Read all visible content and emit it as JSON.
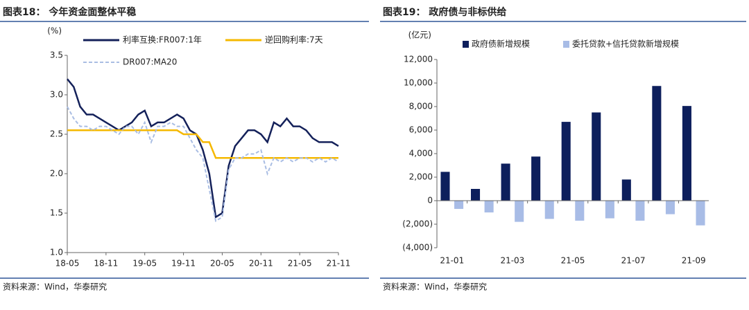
{
  "chart_data": [
    {
      "type": "line",
      "title": "图表18： 今年资金面整体平稳",
      "source": "资料来源：Wind，华泰研究",
      "y_label": "(%)",
      "x": [
        "18-05",
        null,
        null,
        null,
        null,
        null,
        "18-11",
        null,
        null,
        null,
        null,
        null,
        "19-05",
        null,
        null,
        null,
        null,
        null,
        "19-11",
        null,
        null,
        null,
        null,
        null,
        "20-05",
        null,
        null,
        null,
        null,
        null,
        "20-11",
        null,
        null,
        null,
        null,
        null,
        "21-05",
        null,
        null,
        null,
        null,
        null,
        "21-11"
      ],
      "ylim": [
        1.0,
        3.5
      ],
      "yticks": [
        {
          "value": 1.0,
          "label": "1.0"
        },
        {
          "value": 1.5,
          "label": "1.5"
        },
        {
          "value": 2.0,
          "label": "2.0"
        },
        {
          "value": 2.5,
          "label": "2.5"
        },
        {
          "value": 3.0,
          "label": "3.0"
        },
        {
          "value": 3.5,
          "label": "3.5"
        }
      ],
      "series": [
        {
          "name": "利率互换:FR007:1年",
          "color": "#14215a",
          "style": "solid",
          "values": [
            3.2,
            3.1,
            2.85,
            2.75,
            2.75,
            2.7,
            2.65,
            2.6,
            2.55,
            2.6,
            2.65,
            2.75,
            2.8,
            2.6,
            2.65,
            2.65,
            2.7,
            2.75,
            2.7,
            2.55,
            2.5,
            2.3,
            2.0,
            1.45,
            1.5,
            2.1,
            2.35,
            2.45,
            2.55,
            2.55,
            2.5,
            2.4,
            2.65,
            2.6,
            2.7,
            2.6,
            2.6,
            2.55,
            2.45,
            2.4,
            2.4,
            2.4,
            2.35
          ]
        },
        {
          "name": "逆回购利率:7天",
          "color": "#f5b800",
          "style": "solid",
          "values": [
            2.55,
            2.55,
            2.55,
            2.55,
            2.55,
            2.55,
            2.55,
            2.55,
            2.55,
            2.55,
            2.55,
            2.55,
            2.55,
            2.55,
            2.55,
            2.55,
            2.55,
            2.55,
            2.5,
            2.5,
            2.5,
            2.4,
            2.4,
            2.2,
            2.2,
            2.2,
            2.2,
            2.2,
            2.2,
            2.2,
            2.2,
            2.2,
            2.2,
            2.2,
            2.2,
            2.2,
            2.2,
            2.2,
            2.2,
            2.2,
            2.2,
            2.2,
            2.2
          ]
        },
        {
          "name": "DR007:MA20",
          "color": "#a9bde3",
          "style": "dashed",
          "values": [
            2.85,
            2.7,
            2.6,
            2.6,
            2.55,
            2.6,
            2.6,
            2.55,
            2.5,
            2.6,
            2.6,
            2.5,
            2.65,
            2.4,
            2.6,
            2.6,
            2.65,
            2.6,
            2.6,
            2.45,
            2.3,
            2.2,
            1.8,
            1.4,
            1.45,
            2.05,
            2.2,
            2.2,
            2.25,
            2.25,
            2.3,
            2.0,
            2.2,
            2.15,
            2.2,
            2.15,
            2.2,
            2.2,
            2.15,
            2.2,
            2.15,
            2.2,
            2.15
          ]
        }
      ]
    },
    {
      "type": "bar",
      "title": "图表19： 政府债与非标供给",
      "source": "资料来源：Wind，华泰研究",
      "y_label": "(亿元)",
      "categories": [
        "21-01",
        null,
        "21-03",
        null,
        "21-05",
        null,
        "21-07",
        null,
        "21-09"
      ],
      "ylim": [
        -4000,
        12000
      ],
      "yticks": [
        {
          "value": -4000,
          "label": "(4,000)"
        },
        {
          "value": -2000,
          "label": "(2,000)"
        },
        0,
        {
          "value": 2000,
          "label": "2,000"
        },
        {
          "value": 4000,
          "label": "4,000"
        },
        {
          "value": 6000,
          "label": "6,000"
        },
        {
          "value": 8000,
          "label": "8,000"
        },
        {
          "value": 10000,
          "label": "10,000"
        },
        {
          "value": 12000,
          "label": "12,000"
        }
      ],
      "series": [
        {
          "name": "政府债新增规模",
          "color": "#0d1f5c",
          "values": [
            2450,
            1000,
            3150,
            3750,
            6700,
            7500,
            1800,
            9750,
            8050
          ]
        },
        {
          "name": "委托贷款+信托贷款新增规模",
          "color": "#a8bce6",
          "values": [
            -700,
            -1000,
            -1800,
            -1550,
            -1700,
            -1500,
            -1700,
            -1150,
            -2100
          ]
        }
      ]
    }
  ]
}
